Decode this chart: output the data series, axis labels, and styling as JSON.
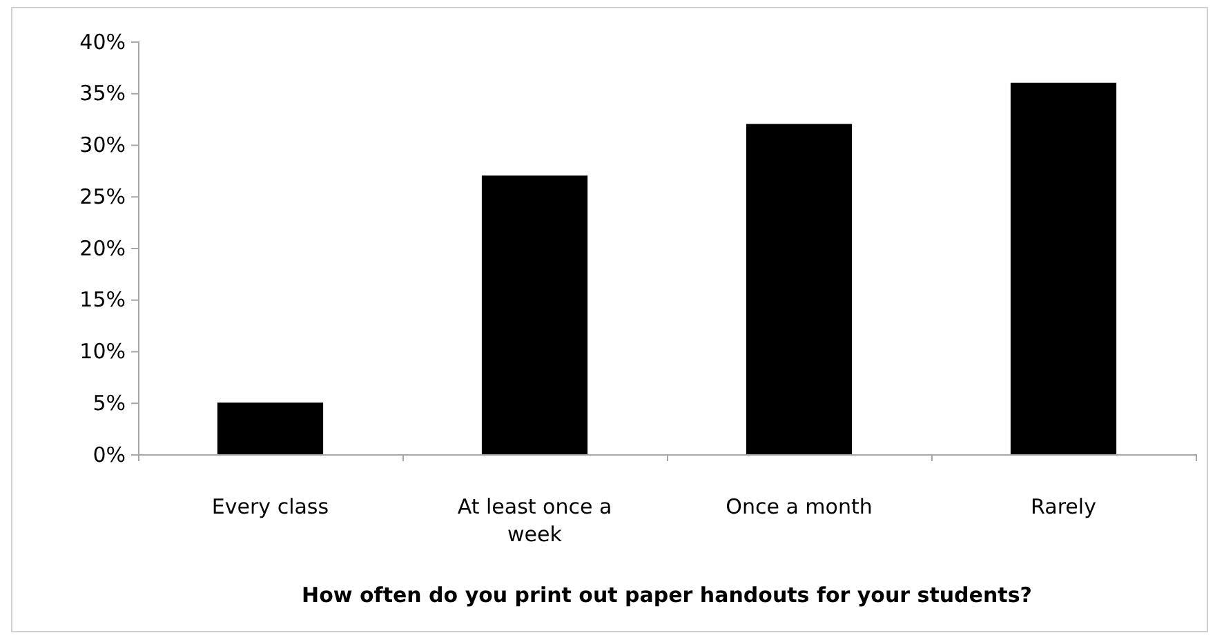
{
  "chart_data": {
    "type": "bar",
    "xlabel": "How often do you print out paper handouts for your students?",
    "categories": [
      "Every class",
      "At least once a week",
      "Once a month",
      "Rarely"
    ],
    "values": [
      5,
      27,
      32,
      36
    ],
    "color": "#000000",
    "ylim": [
      0,
      40
    ],
    "yticks": [
      {
        "value": 0,
        "label": "0%"
      },
      {
        "value": 5,
        "label": "5%"
      },
      {
        "value": 10,
        "label": "10%"
      },
      {
        "value": 15,
        "label": "15%"
      },
      {
        "value": 20,
        "label": "20%"
      },
      {
        "value": 25,
        "label": "25%"
      },
      {
        "value": 30,
        "label": "30%"
      },
      {
        "value": 35,
        "label": "35%"
      },
      {
        "value": 40,
        "label": "40%"
      }
    ]
  }
}
